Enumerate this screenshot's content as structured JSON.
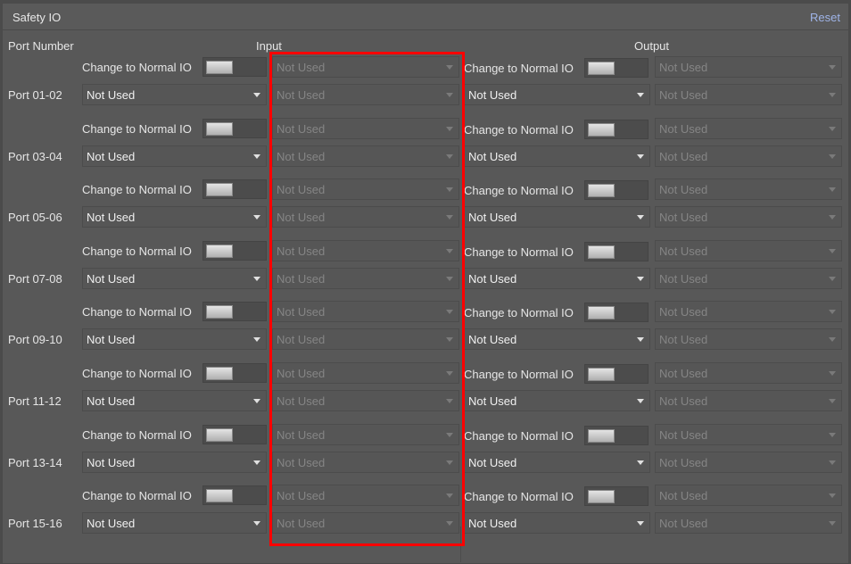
{
  "title": "Safety IO",
  "reset_label": "Reset",
  "headers": {
    "port_number": "Port Number",
    "input": "Input",
    "output": "Output"
  },
  "toggle_label": "Change to Normal IO",
  "highlight_color": "#ff0000",
  "ports": [
    {
      "name": "Port 01-02",
      "input_mode": "Not Used",
      "input_top": "Not Used",
      "input_bottom": "Not Used",
      "output_mode": "Not Used",
      "output_top": "Not Used",
      "output_bottom": "Not Used"
    },
    {
      "name": "Port 03-04",
      "input_mode": "Not Used",
      "input_top": "Not Used",
      "input_bottom": "Not Used",
      "output_mode": "Not Used",
      "output_top": "Not Used",
      "output_bottom": "Not Used"
    },
    {
      "name": "Port 05-06",
      "input_mode": "Not Used",
      "input_top": "Not Used",
      "input_bottom": "Not Used",
      "output_mode": "Not Used",
      "output_top": "Not Used",
      "output_bottom": "Not Used"
    },
    {
      "name": "Port 07-08",
      "input_mode": "Not Used",
      "input_top": "Not Used",
      "input_bottom": "Not Used",
      "output_mode": "Not Used",
      "output_top": "Not Used",
      "output_bottom": "Not Used"
    },
    {
      "name": "Port 09-10",
      "input_mode": "Not Used",
      "input_top": "Not Used",
      "input_bottom": "Not Used",
      "output_mode": "Not Used",
      "output_top": "Not Used",
      "output_bottom": "Not Used"
    },
    {
      "name": "Port 11-12",
      "input_mode": "Not Used",
      "input_top": "Not Used",
      "input_bottom": "Not Used",
      "output_mode": "Not Used",
      "output_top": "Not Used",
      "output_bottom": "Not Used"
    },
    {
      "name": "Port 13-14",
      "input_mode": "Not Used",
      "input_top": "Not Used",
      "input_bottom": "Not Used",
      "output_mode": "Not Used",
      "output_top": "Not Used",
      "output_bottom": "Not Used"
    },
    {
      "name": "Port 15-16",
      "input_mode": "Not Used",
      "input_top": "Not Used",
      "input_bottom": "Not Used",
      "output_mode": "Not Used",
      "output_top": "Not Used",
      "output_bottom": "Not Used"
    }
  ]
}
